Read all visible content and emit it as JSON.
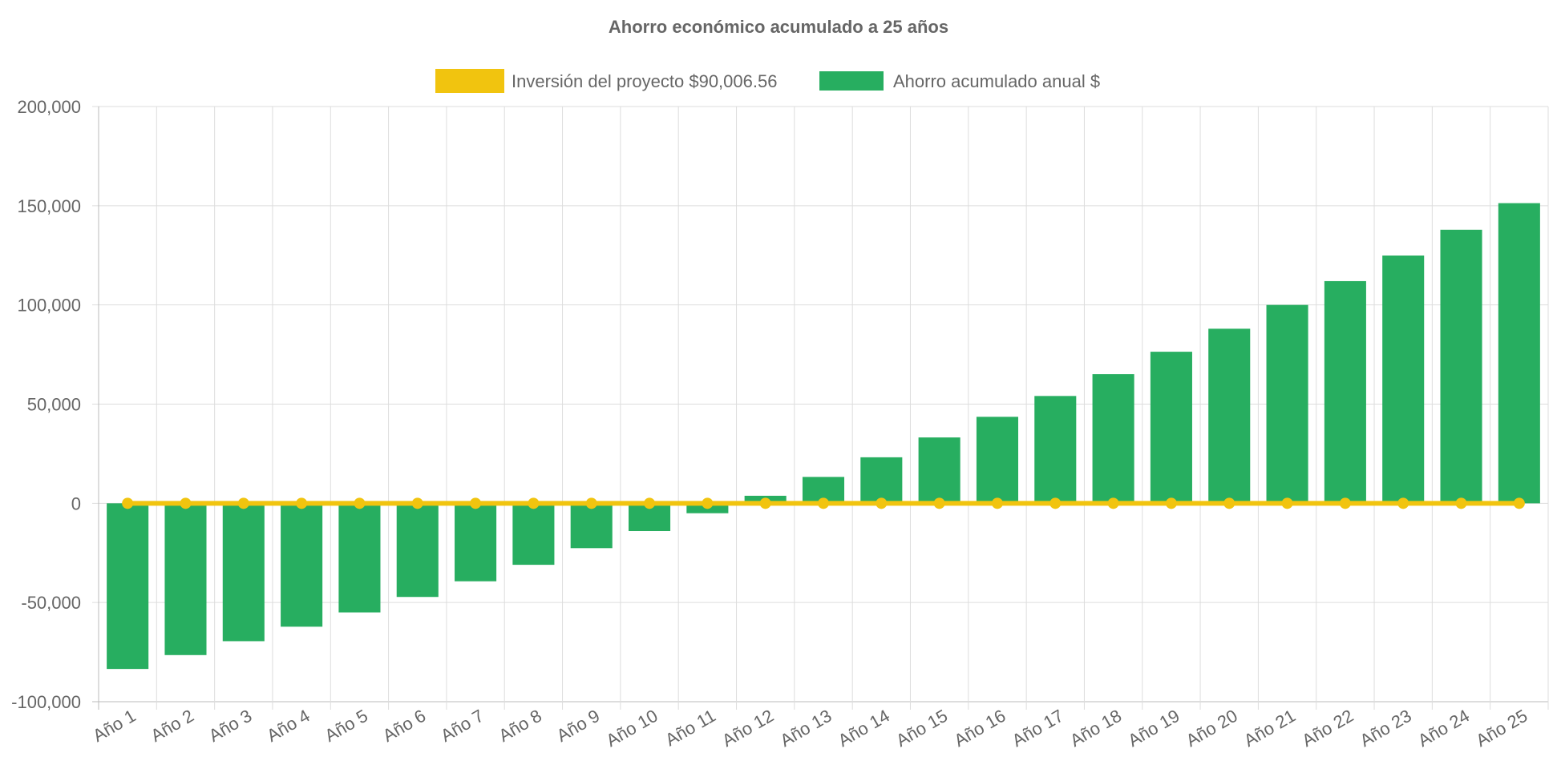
{
  "chart_data": {
    "type": "bar",
    "title": "Ahorro económico acumulado a 25 años",
    "xlabel": "",
    "ylabel": "",
    "ylim": [
      -100000,
      200000
    ],
    "yticks": [
      200000,
      150000,
      100000,
      50000,
      0,
      -50000,
      -100000
    ],
    "ytick_labels": [
      "200,000",
      "150,000",
      "100,000",
      "50,000",
      "0",
      "-50,000",
      "-100,000"
    ],
    "grid": true,
    "legend_position": "top",
    "categories": [
      "Año 1",
      "Año 2",
      "Año 3",
      "Año 4",
      "Año 5",
      "Año 6",
      "Año 7",
      "Año 8",
      "Año 9",
      "Año 10",
      "Año 11",
      "Año 12",
      "Año 13",
      "Año 14",
      "Año 15",
      "Año 16",
      "Año 17",
      "Año 18",
      "Año 19",
      "Año 20",
      "Año 21",
      "Año 22",
      "Año 23",
      "Año 24",
      "Año 25"
    ],
    "series": [
      {
        "name": "Inversión del proyecto $90,006.56",
        "type": "line",
        "color": "#f1c40f",
        "values": [
          0,
          0,
          0,
          0,
          0,
          0,
          0,
          0,
          0,
          0,
          0,
          0,
          0,
          0,
          0,
          0,
          0,
          0,
          0,
          0,
          0,
          0,
          0,
          0,
          0
        ]
      },
      {
        "name": "Ahorro acumulado anual $",
        "type": "bar",
        "color": "#27ae60",
        "values": [
          -83500,
          -76500,
          -69500,
          -62200,
          -55000,
          -47200,
          -39300,
          -31000,
          -22600,
          -14000,
          -5000,
          3800,
          13300,
          23200,
          33200,
          43600,
          54100,
          65100,
          76400,
          88000,
          100000,
          112000,
          124900,
          137900,
          151300
        ]
      }
    ]
  }
}
